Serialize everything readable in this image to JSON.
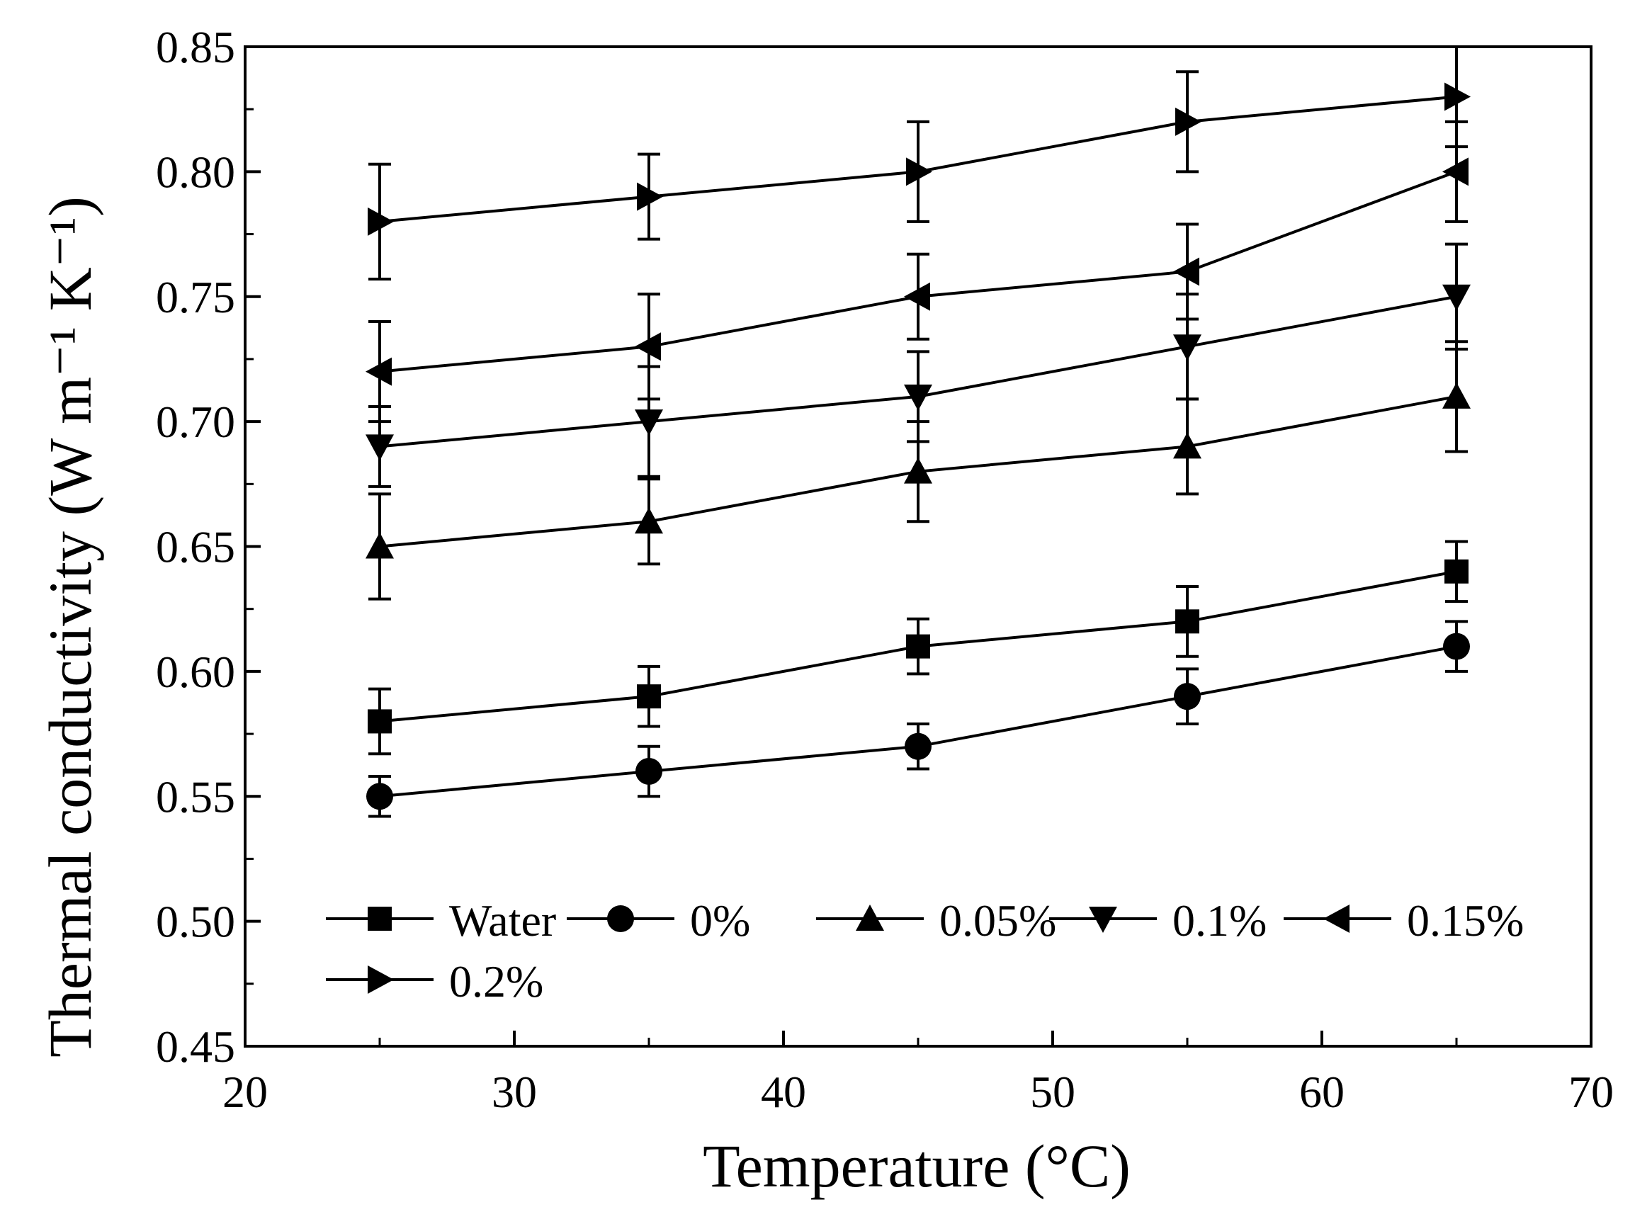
{
  "chart_data": {
    "type": "line",
    "title": "",
    "xlabel": "Temperature (°C)",
    "ylabel": "Thermal conductivity",
    "ylabel_unit": "(W m⁻¹ K⁻¹)",
    "xlim": [
      20,
      70
    ],
    "ylim": [
      0.45,
      0.85
    ],
    "xticks": [
      20,
      30,
      40,
      50,
      60,
      70
    ],
    "yticks": [
      0.45,
      0.5,
      0.55,
      0.6,
      0.65,
      0.7,
      0.75,
      0.8,
      0.85
    ],
    "x": [
      25,
      35,
      45,
      55,
      65
    ],
    "grid": false,
    "legend_position": "bottom-left",
    "series": [
      {
        "name": "Water",
        "marker": "square",
        "values": [
          0.58,
          0.59,
          0.61,
          0.62,
          0.64
        ],
        "errors": [
          0.013,
          0.012,
          0.011,
          0.014,
          0.012
        ]
      },
      {
        "name": "0%",
        "marker": "circle",
        "values": [
          0.55,
          0.56,
          0.57,
          0.59,
          0.61
        ],
        "errors": [
          0.008,
          0.01,
          0.009,
          0.011,
          0.01
        ]
      },
      {
        "name": "0.05%",
        "marker": "triangle-up",
        "values": [
          0.65,
          0.66,
          0.68,
          0.69,
          0.71
        ],
        "errors": [
          0.021,
          0.017,
          0.02,
          0.019,
          0.022
        ]
      },
      {
        "name": "0.1%",
        "marker": "triangle-down",
        "values": [
          0.69,
          0.7,
          0.71,
          0.73,
          0.75
        ],
        "errors": [
          0.016,
          0.022,
          0.018,
          0.021,
          0.021
        ]
      },
      {
        "name": "0.15%",
        "marker": "triangle-left",
        "values": [
          0.72,
          0.73,
          0.75,
          0.76,
          0.8
        ],
        "errors": [
          0.02,
          0.021,
          0.017,
          0.019,
          0.02
        ]
      },
      {
        "name": "0.2%",
        "marker": "triangle-right",
        "values": [
          0.78,
          0.79,
          0.8,
          0.82,
          0.83
        ],
        "errors": [
          0.023,
          0.017,
          0.02,
          0.02,
          0.02
        ]
      }
    ]
  }
}
